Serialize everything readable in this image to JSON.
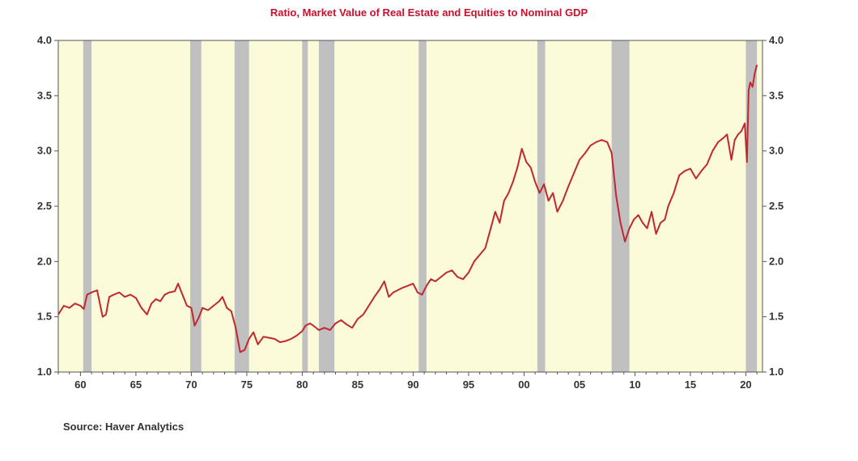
{
  "chart_data": {
    "type": "line",
    "title": "Ratio, Market Value of Real Estate and Equities to Nominal GDP",
    "source": "Source: Haver Analytics",
    "xlim": [
      1958,
      2021.5
    ],
    "ylim": [
      1.0,
      4.0
    ],
    "y_ticks": [
      1.0,
      1.5,
      2.0,
      2.5,
      3.0,
      3.5,
      4.0
    ],
    "y_tick_labels": [
      "1.0",
      "1.5",
      "2.0",
      "2.5",
      "3.0",
      "3.5",
      "4.0"
    ],
    "x_ticks": [
      1960,
      1965,
      1970,
      1975,
      1980,
      1985,
      1990,
      1995,
      2000,
      2005,
      2010,
      2015,
      2020
    ],
    "x_tick_labels": [
      "60",
      "65",
      "70",
      "75",
      "80",
      "85",
      "90",
      "95",
      "00",
      "05",
      "10",
      "15",
      "20"
    ],
    "colors": {
      "line": "#c0282d",
      "plot_background": "#fbfbd9",
      "recession": "#c0c0c0",
      "title": "#c8102e"
    },
    "recessions": [
      [
        1960.25,
        1961.0
      ],
      [
        1969.9,
        1970.9
      ],
      [
        1973.9,
        1975.2
      ],
      [
        1980.0,
        1980.5
      ],
      [
        1981.5,
        1982.9
      ],
      [
        1990.5,
        1991.2
      ],
      [
        2001.2,
        2001.9
      ],
      [
        2007.9,
        2009.5
      ],
      [
        2020.0,
        2021.0
      ]
    ],
    "series": [
      {
        "x": [
          1958.0,
          1958.5,
          1959.0,
          1959.5,
          1960.0,
          1960.3,
          1960.6,
          1961.0,
          1961.5,
          1962.0,
          1962.3,
          1962.6,
          1963.0,
          1963.5,
          1964.0,
          1964.5,
          1965.0,
          1965.5,
          1966.0,
          1966.4,
          1966.8,
          1967.2,
          1967.6,
          1968.0,
          1968.5,
          1968.8,
          1969.2,
          1969.6,
          1970.0,
          1970.3,
          1970.7,
          1971.0,
          1971.5,
          1972.0,
          1972.5,
          1972.8,
          1973.2,
          1973.6,
          1974.0,
          1974.4,
          1974.8,
          1975.2,
          1975.6,
          1976.0,
          1976.5,
          1977.0,
          1977.5,
          1978.0,
          1978.5,
          1979.0,
          1979.5,
          1980.0,
          1980.3,
          1980.7,
          1981.0,
          1981.5,
          1982.0,
          1982.5,
          1983.0,
          1983.5,
          1984.0,
          1984.5,
          1985.0,
          1985.5,
          1986.0,
          1986.5,
          1987.0,
          1987.4,
          1987.8,
          1988.2,
          1988.6,
          1989.0,
          1989.5,
          1990.0,
          1990.4,
          1990.8,
          1991.2,
          1991.6,
          1992.0,
          1992.5,
          1993.0,
          1993.5,
          1994.0,
          1994.5,
          1995.0,
          1995.5,
          1996.0,
          1996.5,
          1997.0,
          1997.4,
          1997.8,
          1998.2,
          1998.6,
          1999.0,
          1999.4,
          1999.8,
          2000.2,
          2000.6,
          2001.0,
          2001.4,
          2001.8,
          2002.2,
          2002.6,
          2003.0,
          2003.5,
          2004.0,
          2004.5,
          2005.0,
          2005.5,
          2006.0,
          2006.5,
          2007.0,
          2007.5,
          2007.9,
          2008.3,
          2008.7,
          2009.1,
          2009.5,
          2009.9,
          2010.3,
          2010.7,
          2011.1,
          2011.5,
          2011.9,
          2012.3,
          2012.7,
          2013.0,
          2013.5,
          2014.0,
          2014.5,
          2015.0,
          2015.5,
          2016.0,
          2016.5,
          2017.0,
          2017.5,
          2018.0,
          2018.3,
          2018.7,
          2019.0,
          2019.3,
          2019.6,
          2019.9,
          2020.1,
          2020.25,
          2020.4,
          2020.6,
          2020.8,
          2021.0
        ],
        "values": [
          1.52,
          1.6,
          1.58,
          1.62,
          1.6,
          1.57,
          1.7,
          1.72,
          1.74,
          1.5,
          1.52,
          1.68,
          1.7,
          1.72,
          1.68,
          1.7,
          1.67,
          1.58,
          1.52,
          1.62,
          1.66,
          1.64,
          1.7,
          1.72,
          1.73,
          1.8,
          1.7,
          1.6,
          1.58,
          1.42,
          1.5,
          1.58,
          1.56,
          1.6,
          1.64,
          1.68,
          1.58,
          1.55,
          1.4,
          1.18,
          1.2,
          1.3,
          1.36,
          1.25,
          1.32,
          1.31,
          1.3,
          1.27,
          1.28,
          1.3,
          1.33,
          1.37,
          1.42,
          1.44,
          1.42,
          1.38,
          1.4,
          1.38,
          1.44,
          1.47,
          1.43,
          1.4,
          1.48,
          1.52,
          1.6,
          1.68,
          1.75,
          1.82,
          1.68,
          1.72,
          1.74,
          1.76,
          1.78,
          1.8,
          1.72,
          1.7,
          1.78,
          1.84,
          1.82,
          1.86,
          1.9,
          1.92,
          1.86,
          1.84,
          1.9,
          2.0,
          2.06,
          2.12,
          2.3,
          2.45,
          2.35,
          2.55,
          2.62,
          2.72,
          2.85,
          3.02,
          2.9,
          2.85,
          2.72,
          2.62,
          2.7,
          2.55,
          2.62,
          2.45,
          2.55,
          2.68,
          2.8,
          2.92,
          2.98,
          3.05,
          3.08,
          3.1,
          3.08,
          2.98,
          2.6,
          2.35,
          2.18,
          2.3,
          2.38,
          2.42,
          2.35,
          2.3,
          2.45,
          2.25,
          2.35,
          2.38,
          2.5,
          2.62,
          2.78,
          2.82,
          2.84,
          2.75,
          2.82,
          2.88,
          3.0,
          3.08,
          3.12,
          3.15,
          2.92,
          3.1,
          3.15,
          3.18,
          3.25,
          2.9,
          3.55,
          3.62,
          3.58,
          3.7,
          3.78
        ]
      }
    ]
  }
}
